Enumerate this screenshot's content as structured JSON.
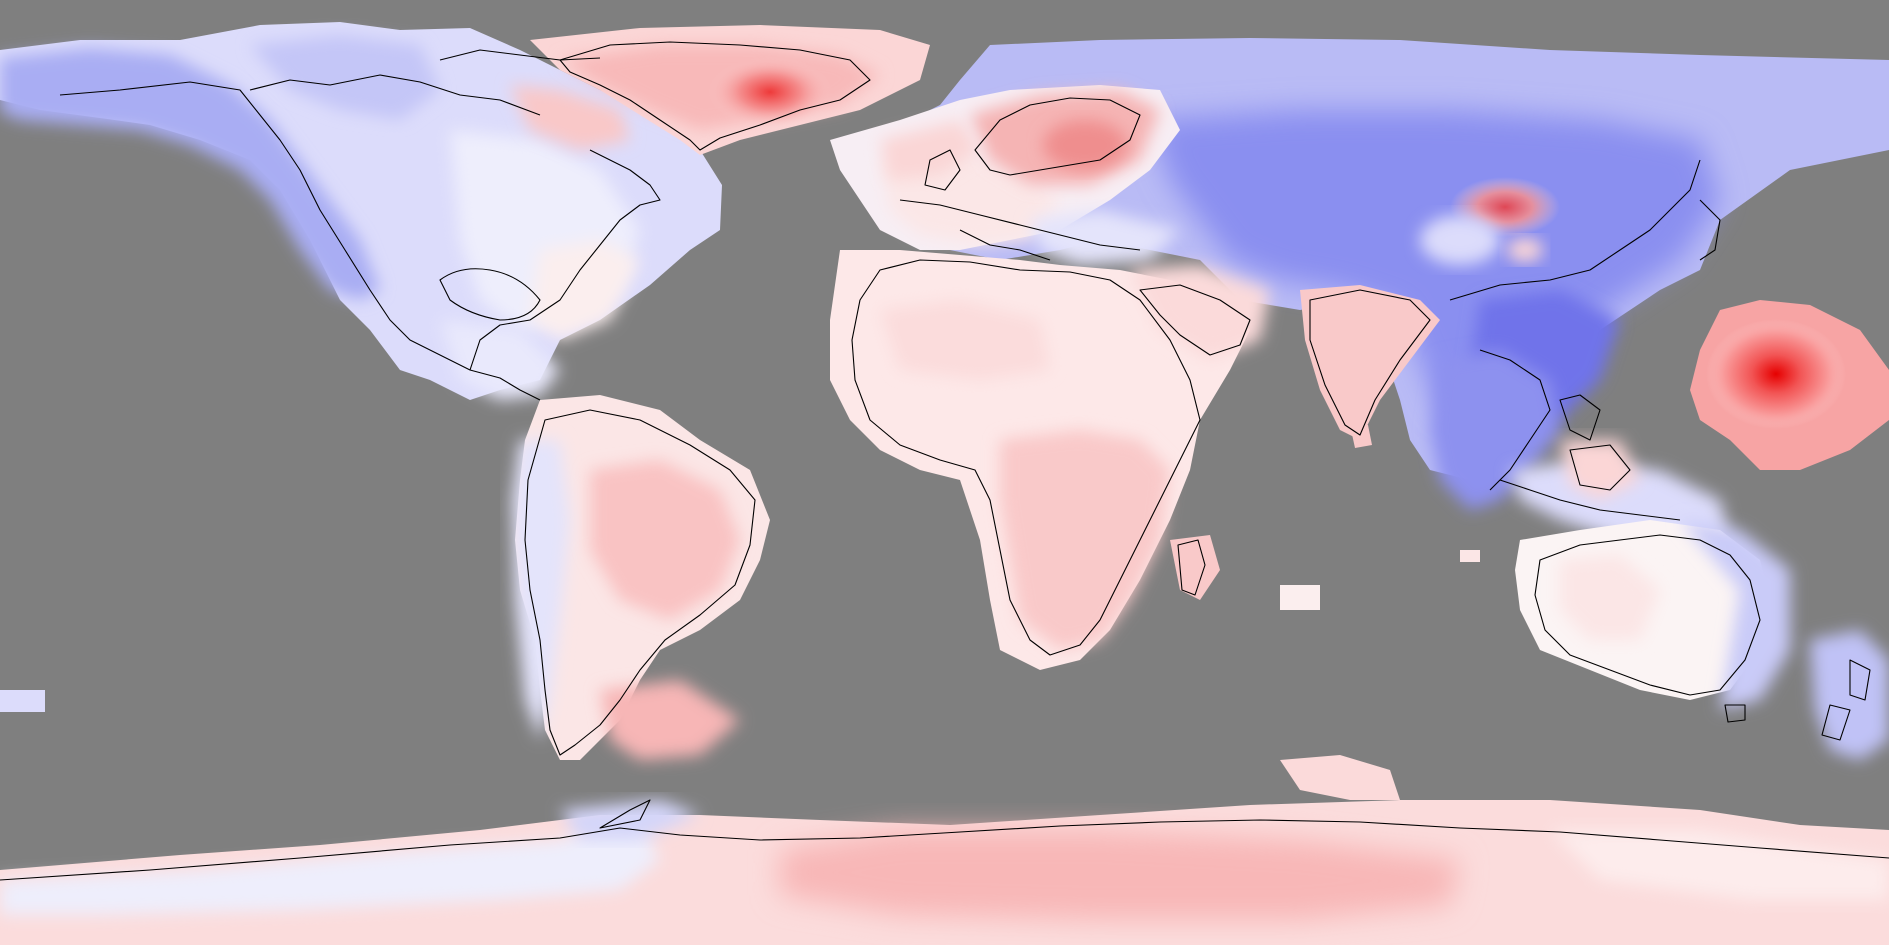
{
  "map": {
    "projection": "equirectangular",
    "extent": {
      "lon": [
        -180,
        180
      ],
      "lat": [
        -90,
        90
      ]
    },
    "variable": "anomaly",
    "colors": {
      "ocean_missing": "#7f7f7f",
      "coastline": "#000000",
      "anomaly_strong_negative": "#6f73ea",
      "anomaly_negative": "#a9adf3",
      "anomaly_weak_negative": "#dcdcfb",
      "anomaly_neutral": "#fbf4f4",
      "anomaly_weak_positive": "#fcdada",
      "anomaly_positive": "#f9b1b1",
      "anomaly_strong_positive": "#f25555",
      "anomaly_extreme_positive": "#e60000"
    },
    "regions": [
      {
        "name": "north-america",
        "anomaly": "weak-negative"
      },
      {
        "name": "alaska-western-canada",
        "anomaly": "negative"
      },
      {
        "name": "greenland",
        "anomaly": "positive"
      },
      {
        "name": "greenland-east-hotspot",
        "anomaly": "strong-positive"
      },
      {
        "name": "scandinavia",
        "anomaly": "positive"
      },
      {
        "name": "europe",
        "anomaly": "weak-positive"
      },
      {
        "name": "siberia-east-asia",
        "anomaly": "negative"
      },
      {
        "name": "china",
        "anomaly": "strong-negative"
      },
      {
        "name": "mongolia-hotspot",
        "anomaly": "positive"
      },
      {
        "name": "india",
        "anomaly": "weak-positive"
      },
      {
        "name": "africa",
        "anomaly": "weak-positive"
      },
      {
        "name": "south-america",
        "anomaly": "weak-positive"
      },
      {
        "name": "australia",
        "anomaly": "neutral"
      },
      {
        "name": "new-zealand",
        "anomaly": "negative"
      },
      {
        "name": "west-pacific-hotspot",
        "anomaly": "extreme-positive"
      },
      {
        "name": "antarctica",
        "anomaly": "weak-positive"
      }
    ]
  }
}
